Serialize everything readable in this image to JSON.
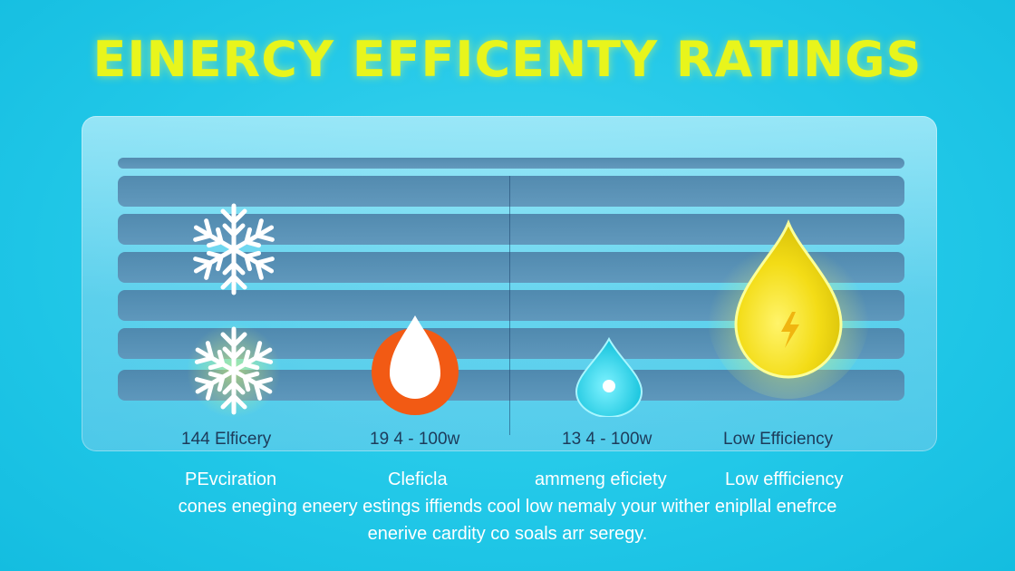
{
  "title": "EINERCY EFFICENTY RATINGS",
  "columns": [
    {
      "label": "144 Elficery",
      "sub_label": "PEvciration"
    },
    {
      "label": "19 4 - 100w",
      "sub_label": "Cleficla"
    },
    {
      "label": "13 4 - 100w",
      "sub_label": "ammeng eficiety"
    },
    {
      "label": "Low Efficiency",
      "sub_label": "Low effficiency"
    }
  ],
  "description": {
    "line1": "cones enegìng eneery estings iffiends cool low nemaly your wither enipllal enefrce",
    "line2": "enerive cardity co soals arr seregy."
  },
  "icons": [
    "snowflake-icon",
    "snowflake-icon",
    "water-drop-icon",
    "water-drop-icon",
    "energy-drop-icon"
  ],
  "colors": {
    "background": "#22c8e8",
    "title": "#e8f51c",
    "orange_drop": "#f25a14",
    "cyan_drop": "#2ad6e8",
    "yellow_drop": "#e6e81a"
  }
}
